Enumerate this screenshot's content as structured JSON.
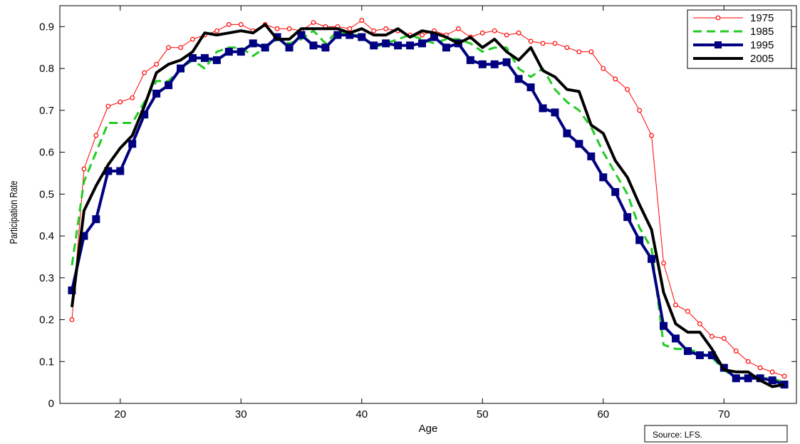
{
  "chart_data": {
    "type": "line",
    "title": "",
    "xlabel": "Age",
    "ylabel": "Participation Rate",
    "xlim": [
      15,
      76
    ],
    "ylim": [
      0,
      0.95
    ],
    "xticks": [
      20,
      30,
      40,
      50,
      60,
      70
    ],
    "yticks": [
      0,
      0.1,
      0.2,
      0.3,
      0.4,
      0.5,
      0.6,
      0.7,
      0.8,
      0.9
    ],
    "xtick_labels": [
      "20",
      "30",
      "40",
      "50",
      "60",
      "70"
    ],
    "ytick_labels": [
      "0",
      "0.1",
      "0.2",
      "0.3",
      "0.4",
      "0.5",
      "0.6",
      "0.7",
      "0.8",
      "0.9"
    ],
    "grid": false,
    "legend_position": "top-right",
    "source_note": "Source: LFS.",
    "x": [
      16,
      17,
      18,
      19,
      20,
      21,
      22,
      23,
      24,
      25,
      26,
      27,
      28,
      29,
      30,
      31,
      32,
      33,
      34,
      35,
      36,
      37,
      38,
      39,
      40,
      41,
      42,
      43,
      44,
      45,
      46,
      47,
      48,
      49,
      50,
      51,
      52,
      53,
      54,
      55,
      56,
      57,
      58,
      59,
      60,
      61,
      62,
      63,
      64,
      65,
      66,
      67,
      68,
      69,
      70,
      71,
      72,
      73,
      74,
      75
    ],
    "series": [
      {
        "name": "1975",
        "color": "#ff0000",
        "style": "thin-line-circle-markers",
        "values": [
          0.2,
          0.56,
          0.64,
          0.71,
          0.72,
          0.73,
          0.79,
          0.81,
          0.85,
          0.85,
          0.87,
          0.88,
          0.89,
          0.905,
          0.905,
          0.89,
          0.905,
          0.895,
          0.895,
          0.89,
          0.91,
          0.9,
          0.9,
          0.895,
          0.915,
          0.89,
          0.895,
          0.89,
          0.88,
          0.88,
          0.89,
          0.88,
          0.895,
          0.875,
          0.885,
          0.89,
          0.88,
          0.885,
          0.865,
          0.86,
          0.86,
          0.85,
          0.84,
          0.84,
          0.8,
          0.775,
          0.75,
          0.7,
          0.64,
          0.335,
          0.235,
          0.22,
          0.19,
          0.16,
          0.155,
          0.125,
          0.1,
          0.085,
          0.075,
          0.065
        ]
      },
      {
        "name": "1985",
        "color": "#22cc22",
        "style": "dashed-line",
        "values": [
          0.33,
          0.53,
          0.6,
          0.67,
          0.67,
          0.67,
          0.72,
          0.77,
          0.77,
          0.8,
          0.82,
          0.8,
          0.84,
          0.85,
          0.85,
          0.83,
          0.85,
          0.87,
          0.86,
          0.87,
          0.89,
          0.86,
          0.89,
          0.88,
          0.88,
          0.85,
          0.86,
          0.87,
          0.88,
          0.87,
          0.86,
          0.87,
          0.87,
          0.86,
          0.84,
          0.85,
          0.85,
          0.8,
          0.78,
          0.8,
          0.75,
          0.72,
          0.7,
          0.66,
          0.6,
          0.55,
          0.5,
          0.42,
          0.37,
          0.14,
          0.13,
          0.13,
          0.12,
          0.11,
          0.08,
          0.06,
          0.06,
          0.06,
          0.06,
          0.05
        ]
      },
      {
        "name": "1995",
        "color": "#000080",
        "style": "thick-line-square-markers",
        "values": [
          0.27,
          0.4,
          0.44,
          0.555,
          0.555,
          0.62,
          0.69,
          0.74,
          0.76,
          0.8,
          0.825,
          0.825,
          0.82,
          0.84,
          0.84,
          0.86,
          0.85,
          0.875,
          0.85,
          0.88,
          0.855,
          0.85,
          0.88,
          0.88,
          0.875,
          0.855,
          0.86,
          0.855,
          0.855,
          0.86,
          0.875,
          0.85,
          0.86,
          0.82,
          0.81,
          0.81,
          0.815,
          0.775,
          0.755,
          0.705,
          0.695,
          0.645,
          0.62,
          0.59,
          0.54,
          0.505,
          0.445,
          0.39,
          0.345,
          0.185,
          0.155,
          0.125,
          0.115,
          0.115,
          0.085,
          0.06,
          0.06,
          0.06,
          0.055,
          0.045
        ]
      },
      {
        "name": "2005",
        "color": "#000000",
        "style": "thick-line",
        "values": [
          0.23,
          0.46,
          0.52,
          0.57,
          0.61,
          0.64,
          0.71,
          0.79,
          0.81,
          0.82,
          0.84,
          0.885,
          0.88,
          0.885,
          0.89,
          0.885,
          0.905,
          0.87,
          0.87,
          0.895,
          0.895,
          0.895,
          0.895,
          0.885,
          0.895,
          0.88,
          0.88,
          0.895,
          0.875,
          0.89,
          0.885,
          0.875,
          0.86,
          0.875,
          0.85,
          0.87,
          0.84,
          0.82,
          0.85,
          0.795,
          0.78,
          0.75,
          0.745,
          0.665,
          0.645,
          0.58,
          0.54,
          0.475,
          0.415,
          0.265,
          0.19,
          0.17,
          0.17,
          0.13,
          0.08,
          0.075,
          0.075,
          0.055,
          0.04,
          0.045
        ]
      }
    ]
  }
}
